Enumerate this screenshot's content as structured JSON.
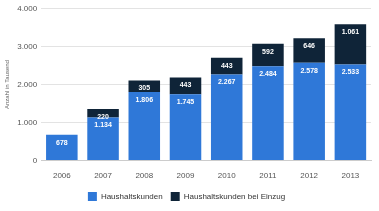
{
  "chart_data": {
    "type": "bar",
    "stacked": true,
    "data_labels": true,
    "grid": true,
    "legend": "bottom",
    "y_label": "Anzahl in Tausend",
    "categories": [
      "2006",
      "2007",
      "2008",
      "2009",
      "2010",
      "2011",
      "2012",
      "2013"
    ],
    "series": [
      {
        "name": "Haushaltskunden",
        "color": "#2f78d8",
        "values": [
          678,
          1134,
          1806,
          1745,
          2267,
          2484,
          2578,
          2533
        ],
        "value_labels": [
          "678",
          "1.134",
          "1.806",
          "1.745",
          "2.267",
          "2.484",
          "2.578",
          "2.533"
        ]
      },
      {
        "name": "Haushaltskunden bei Einzug",
        "color": "#0f2438",
        "values": [
          null,
          220,
          305,
          443,
          443,
          592,
          646,
          1061
        ],
        "value_labels": [
          null,
          "220",
          "305",
          "443",
          "443",
          "592",
          "646",
          "1.061"
        ]
      }
    ],
    "ylim": [
      0,
      4000
    ],
    "yticks": [
      0,
      {
        "value": 1000,
        "label": "1.000"
      },
      {
        "value": 2000,
        "label": "2.000"
      },
      {
        "value": 3000,
        "label": "3.000"
      },
      {
        "value": 4000,
        "label": "4.000"
      }
    ]
  }
}
